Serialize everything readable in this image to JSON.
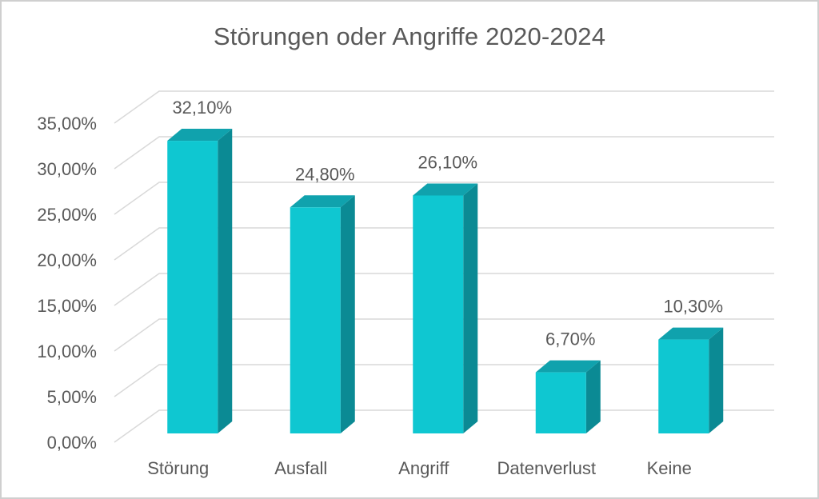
{
  "chart_data": {
    "type": "bar",
    "variant": "3d-column",
    "title": "Störungen oder Angriffe 2020-2024",
    "xlabel": "",
    "ylabel": "",
    "categories": [
      "Störung",
      "Ausfall",
      "Angriff",
      "Datenverlust",
      "Keine"
    ],
    "values": [
      32.1,
      24.8,
      26.1,
      6.7,
      10.3
    ],
    "data_labels": [
      "32,10%",
      "24,80%",
      "26,10%",
      "6,70%",
      "10,30%"
    ],
    "y_ticks_bottom_to_top": [
      "0,00%",
      "5,00%",
      "10,00%",
      "15,00%",
      "20,00%",
      "25,00%",
      "30,00%",
      "35,00%"
    ],
    "y_tick_values": [
      0,
      5,
      10,
      15,
      20,
      25,
      30,
      35
    ],
    "ylim": [
      0,
      35
    ],
    "y_step": 5,
    "grid": true,
    "legend": false,
    "colors": {
      "bar_front": "#0fc7d1",
      "bar_top": "#10a2ad",
      "bar_side": "#0b8a94",
      "gridline": "#d9d9d9",
      "text": "#595959",
      "background": "#ffffff",
      "frame_border": "#cfcfcf"
    }
  }
}
